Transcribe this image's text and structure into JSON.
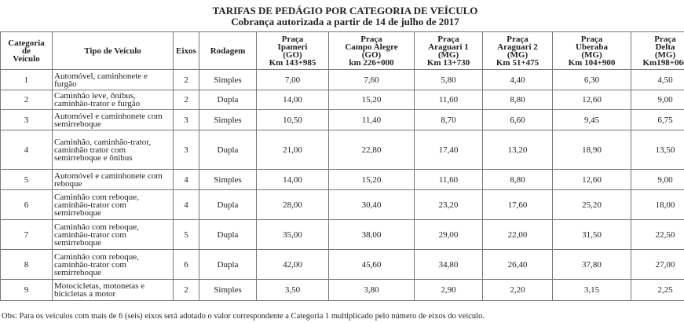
{
  "title": "TARIFAS DE PEDÁGIO POR CATEGORIA DE VEÍCULO",
  "subtitle": "Cobrança autorizada a partir de 14 de julho de 2017",
  "table": {
    "header": [
      [
        "Categoria",
        "de",
        "Veículo"
      ],
      [
        "Tipo de Veículo"
      ],
      [
        "Eixos"
      ],
      [
        "Rodagem"
      ],
      [
        "Praça",
        "Ipameri",
        "(GO)",
        "Km 143+985"
      ],
      [
        "Praça",
        "Campo Alegre",
        "(GO)",
        "km 226+000"
      ],
      [
        "Praça",
        "Araguari 1",
        "(MG)",
        "Km 13+730"
      ],
      [
        "Praça",
        "Araguari 2",
        "(MG)",
        "Km 51+475"
      ],
      [
        "Praça",
        "Uberaba",
        "(MG)",
        "Km 104+900"
      ],
      [
        "Praça",
        "Delta",
        "(MG)",
        "Km198+060"
      ]
    ],
    "rows": [
      [
        "1",
        "Automóvel, caminhonete e furgão",
        "2",
        "Simples",
        "7,00",
        "7,60",
        "5,80",
        "4,40",
        "6,30",
        "4,50"
      ],
      [
        "2",
        "Caminhão leve, ônibus, caminhão-trator e furgão",
        "2",
        "Dupla",
        "14,00",
        "15,20",
        "11,60",
        "8,80",
        "12,60",
        "9,00"
      ],
      [
        "3",
        "Automóvel e caminhonete com semirreboque",
        "3",
        "Simples",
        "10,50",
        "11,40",
        "8,70",
        "6,60",
        "9,45",
        "6,75"
      ],
      [
        "4",
        "Caminhão, caminhão-trator, caminhão trator com semirreboque e ônibus",
        "3",
        "Dupla",
        "21,00",
        "22,80",
        "17,40",
        "13,20",
        "18,90",
        "13,50"
      ],
      [
        "5",
        "Automóvel e caminhonete com reboque",
        "4",
        "Simples",
        "14,00",
        "15,20",
        "11,60",
        "8,80",
        "12,60",
        "9,00"
      ],
      [
        "6",
        "Caminhão com reboque, caminhão-trator com semirreboque",
        "4",
        "Dupla",
        "28,00",
        "30,40",
        "23,20",
        "17,60",
        "25,20",
        "18,00"
      ],
      [
        "7",
        "Caminhão com reboque, caminhão-trator com semirreboque",
        "5",
        "Dupla",
        "35,00",
        "38,00",
        "29,00",
        "22,00",
        "31,50",
        "22,50"
      ],
      [
        "8",
        "Caminhão com reboque, caminhão-trator com semirreboque",
        "6",
        "Dupla",
        "42,00",
        "45,60",
        "34,80",
        "26,40",
        "37,80",
        "27,00"
      ],
      [
        "9",
        "Motocicletas, motonetas e bicicletas a motor",
        "2",
        "Simples",
        "3,50",
        "3,80",
        "2,90",
        "2,20",
        "3,15",
        "2,25"
      ]
    ]
  },
  "note": "Obs: Para os veículos com mais de 6 (seis) eixos será adotado o valor correspondente a Categoria 1 multiplicado pelo número de eixos do veículo."
}
